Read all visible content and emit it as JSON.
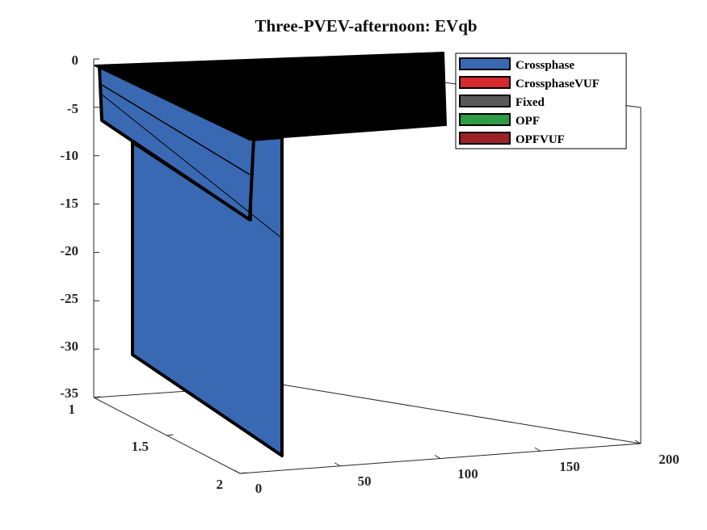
{
  "chart_data": {
    "type": "surface3d",
    "title": "Three-PVEV-afternoon: EVqb",
    "xlabel": "",
    "ylabel": "",
    "zlabel": "",
    "x_ticks": [
      "0",
      "50",
      "100",
      "150",
      "200"
    ],
    "y_ticks": [
      "1",
      "1.5",
      "2"
    ],
    "z_ticks": [
      "0",
      "-5",
      "-10",
      "-15",
      "-20",
      "-25",
      "-30",
      "-35"
    ],
    "xlim": [
      0,
      200
    ],
    "ylim": [
      1,
      2
    ],
    "zlim": [
      -35,
      0
    ],
    "grid": false,
    "legend_position": "top-right",
    "series": [
      {
        "name": "Crossphase",
        "color": "#3a69b3",
        "surface": [
          {
            "x": 0,
            "y": 1,
            "z": 0
          },
          {
            "x": 0,
            "y": 2,
            "z": -32
          },
          {
            "x": 0,
            "y": 1.3,
            "z": -6
          },
          {
            "x": 0,
            "y": 1.3,
            "z": -16
          }
        ]
      },
      {
        "name": "CrossphaseVUF",
        "color": "#d62a2f"
      },
      {
        "name": "Fixed",
        "color": "#595959"
      },
      {
        "name": "OPF",
        "color": "#2f9a44"
      },
      {
        "name": "OPFVUF",
        "color": "#9b2226"
      }
    ],
    "top_surface_color": "#000000"
  }
}
